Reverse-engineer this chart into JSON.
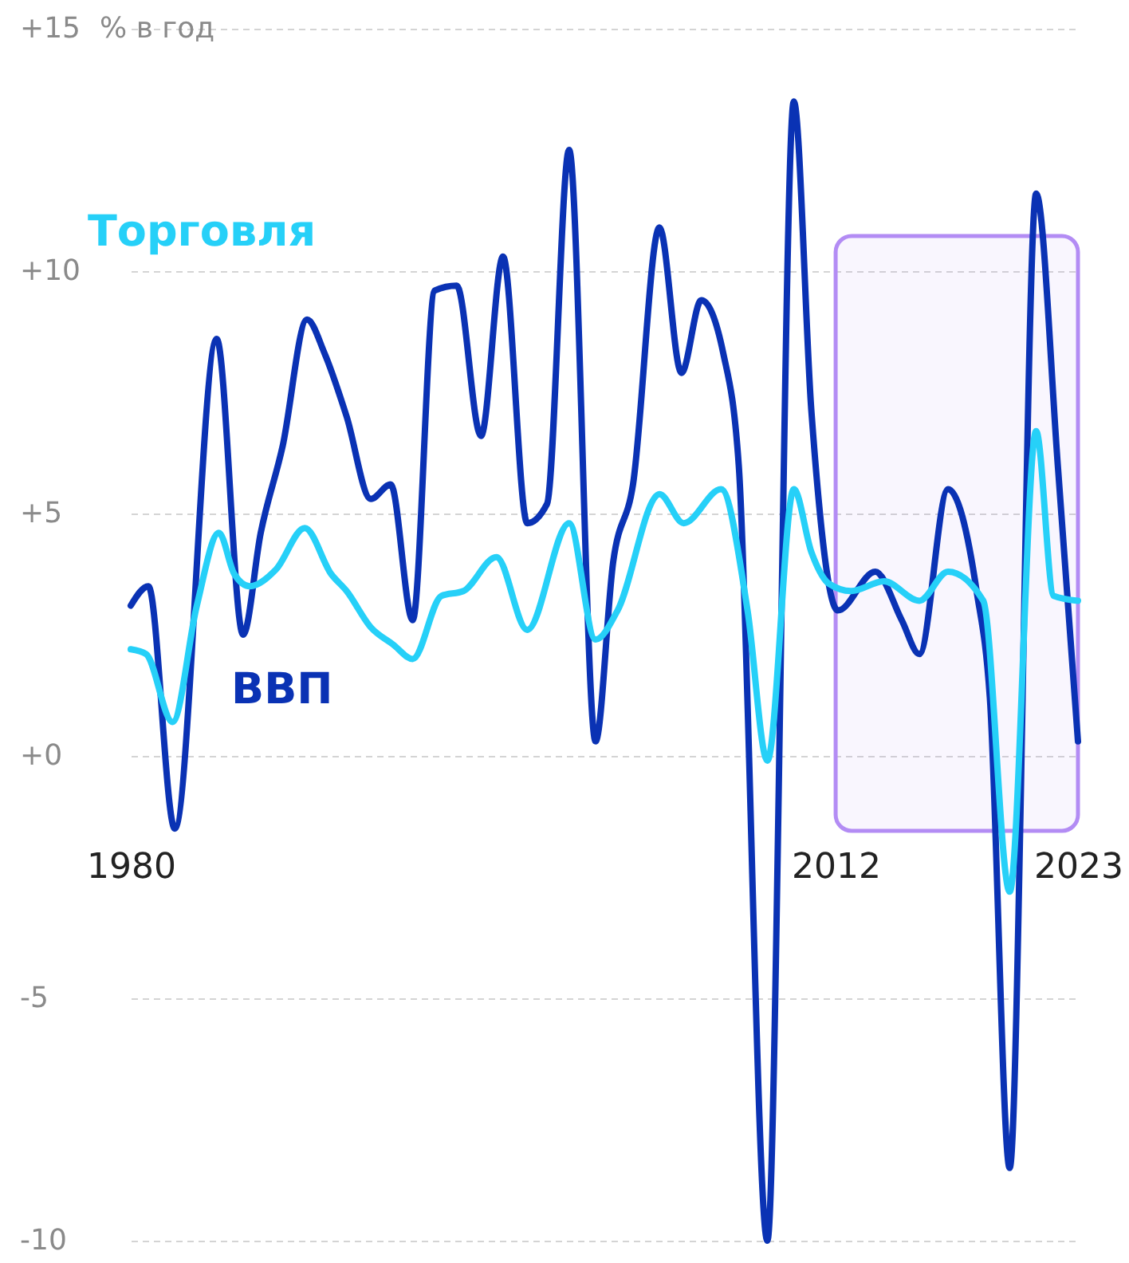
{
  "chart_data": {
    "type": "line",
    "ylabel": "% в год",
    "xlim": [
      1980,
      2023
    ],
    "xticks": [
      1980,
      2012,
      2023
    ],
    "ylim": [
      -10,
      15
    ],
    "yticks": [
      {
        "value": 15,
        "label": "+15"
      },
      {
        "value": 10,
        "label": "+10"
      },
      {
        "value": 5,
        "label": "+5"
      },
      {
        "value": 0,
        "label": "+0"
      },
      {
        "value": -5,
        "label": "-5"
      },
      {
        "value": -10,
        "label": "-10"
      }
    ],
    "grid": "y",
    "line_style": "solid",
    "marker": "none",
    "bands": [
      {
        "axis": "x",
        "from": 2012,
        "to": 2023,
        "color": "#b38cf4"
      }
    ],
    "series": [
      {
        "name": "ВВП",
        "color": "#0a32b4",
        "x": [
          1980,
          1980.8,
          1982,
          1983.9,
          1985.1,
          1985.9,
          1986.9,
          1988,
          1988.8,
          1989.8,
          1990.9,
          1991.8,
          1992.8,
          1993.8,
          1994.8,
          1995.9,
          1996.9,
          1998,
          1998.9,
          1999.9,
          2001.1,
          2001.9,
          2002.8,
          2004,
          2005,
          2005.9,
          2006.9,
          2007.6,
          2008.9,
          2010.1,
          2010.9,
          2012.1,
          2013.8,
          2015,
          2015.8,
          2017.1,
          2018.4,
          2019,
          2019.9,
          2021.1,
          2022.1,
          2023
        ],
        "values": [
          3.1,
          3.5,
          -1.5,
          8.6,
          2.5,
          4.6,
          6.4,
          9.0,
          8.3,
          7.0,
          5.3,
          5.6,
          2.8,
          9.6,
          9.7,
          6.6,
          10.3,
          4.8,
          5.2,
          12.5,
          0.3,
          4.0,
          5.6,
          10.9,
          7.9,
          9.4,
          8.3,
          6.0,
          -10.0,
          13.5,
          7.1,
          3.0,
          3.8,
          2.8,
          2.1,
          5.5,
          3.4,
          1.2,
          -8.5,
          11.6,
          5.9,
          0.3
        ]
      },
      {
        "name": "Торговля",
        "color": "#26d0f8",
        "x": [
          1980,
          1980.7,
          1981.9,
          1983,
          1984,
          1984.7,
          1985.4,
          1986.6,
          1987.9,
          1989.1,
          1989.8,
          1990.9,
          1991.9,
          1992.8,
          1994.1,
          1995.1,
          1996.6,
          1998,
          1999.9,
          2001.1,
          2002.1,
          2004,
          2005.1,
          2006.8,
          2008,
          2008.9,
          2010.1,
          2010.9,
          2011.7,
          2012.7,
          2014.2,
          2015.8,
          2017.1,
          2018.7,
          2019.9,
          2021.1,
          2021.9,
          2023
        ],
        "values": [
          2.2,
          2.1,
          0.7,
          3.1,
          4.6,
          3.75,
          3.5,
          3.85,
          4.7,
          3.75,
          3.4,
          2.65,
          2.3,
          2.0,
          3.3,
          3.4,
          4.1,
          2.6,
          4.8,
          2.4,
          3.0,
          5.4,
          4.8,
          5.5,
          3.0,
          -0.1,
          5.5,
          4.2,
          3.55,
          3.4,
          3.6,
          3.2,
          3.8,
          3.2,
          -2.8,
          6.7,
          3.3,
          3.2
        ]
      }
    ]
  }
}
